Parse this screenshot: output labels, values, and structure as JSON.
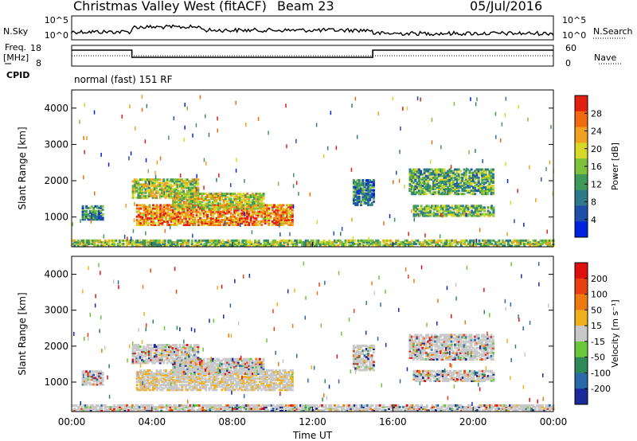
{
  "header": {
    "station": "Christmas Valley West (fitACF)",
    "beam": "Beam 23",
    "date": "05/Jul/2016"
  },
  "top_panels": {
    "nsky_label": "N.Sky",
    "nsky_ticks": [
      "10^5",
      "10^0"
    ],
    "nsearch_label": "N.Search",
    "nsearch_ticks": [
      "10^5",
      "10^0"
    ],
    "freq_label_1": "Freq.",
    "freq_label_2": "[MHz]",
    "freq_ticks": [
      "18",
      "8"
    ],
    "nave_label": "Nave",
    "nave_ticks": [
      "60",
      "0"
    ],
    "cpid_label": "CPID",
    "cpid_text": "normal (fast) 151 RF"
  },
  "chart_data": [
    {
      "type": "heatmap",
      "name": "power",
      "ylabel": "Slant Range [km]",
      "colorbar_label": "Power [dB]",
      "y_ticks": [
        "4000",
        "3000",
        "2000",
        "1000"
      ],
      "colorbar_ticks": [
        "28",
        "24",
        "20",
        "16",
        "12",
        "8",
        "4"
      ],
      "colors": [
        "#0022dd",
        "#1f4fa8",
        "#2e7a8a",
        "#3f9a5a",
        "#7cc23a",
        "#d8d82a",
        "#f2a020",
        "#f06a10",
        "#e02010"
      ],
      "xlim": [
        "00:00",
        "00:00"
      ],
      "ylim": [
        180,
        4500
      ]
    },
    {
      "type": "heatmap",
      "name": "velocity",
      "ylabel": "Slant Range [km]",
      "xlabel": "Time UT",
      "colorbar_label": "Velocity [m s⁻¹]",
      "y_ticks": [
        "4000",
        "3000",
        "2000",
        "1000"
      ],
      "x_ticks": [
        "00:00",
        "04:00",
        "08:00",
        "12:00",
        "16:00",
        "20:00",
        "00:00"
      ],
      "colorbar_ticks": [
        "200",
        "100",
        "50",
        "15",
        "-15",
        "-50",
        "-100",
        "-200"
      ],
      "colors": [
        "#1a2a9a",
        "#2a6aa8",
        "#2f8a5a",
        "#6ac83a",
        "#c8c8c8",
        "#f0b020",
        "#f07a10",
        "#e84010",
        "#e01010"
      ],
      "xlim": [
        "00:00",
        "00:00"
      ],
      "ylim": [
        180,
        4500
      ]
    }
  ]
}
